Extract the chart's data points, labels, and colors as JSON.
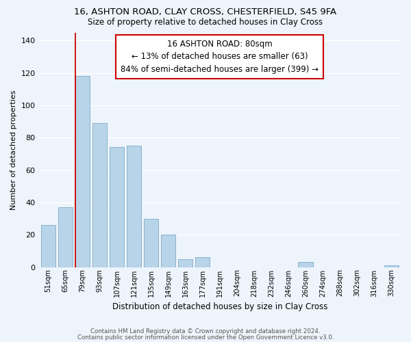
{
  "title": "16, ASHTON ROAD, CLAY CROSS, CHESTERFIELD, S45 9FA",
  "subtitle": "Size of property relative to detached houses in Clay Cross",
  "xlabel": "Distribution of detached houses by size in Clay Cross",
  "ylabel": "Number of detached properties",
  "bar_color": "#b8d4e8",
  "bar_edge_color": "#7aaac8",
  "marker_line_color": "#cc0000",
  "categories": [
    "51sqm",
    "65sqm",
    "79sqm",
    "93sqm",
    "107sqm",
    "121sqm",
    "135sqm",
    "149sqm",
    "163sqm",
    "177sqm",
    "191sqm",
    "204sqm",
    "218sqm",
    "232sqm",
    "246sqm",
    "260sqm",
    "274sqm",
    "288sqm",
    "302sqm",
    "316sqm",
    "330sqm"
  ],
  "values": [
    26,
    37,
    118,
    89,
    74,
    75,
    30,
    20,
    5,
    6,
    0,
    0,
    0,
    0,
    0,
    3,
    0,
    0,
    0,
    0,
    1
  ],
  "marker_index": 2,
  "ylim": [
    0,
    145
  ],
  "yticks": [
    0,
    20,
    40,
    60,
    80,
    100,
    120,
    140
  ],
  "annotation_text_line1": "16 ASHTON ROAD: 80sqm",
  "annotation_text_line2": "← 13% of detached houses are smaller (63)",
  "annotation_text_line3": "84% of semi-detached houses are larger (399) →",
  "footer_line1": "Contains HM Land Registry data © Crown copyright and database right 2024.",
  "footer_line2": "Contains public sector information licensed under the Open Government Licence v3.0.",
  "background_color": "#eef4fb",
  "grid_color": "#ffffff"
}
